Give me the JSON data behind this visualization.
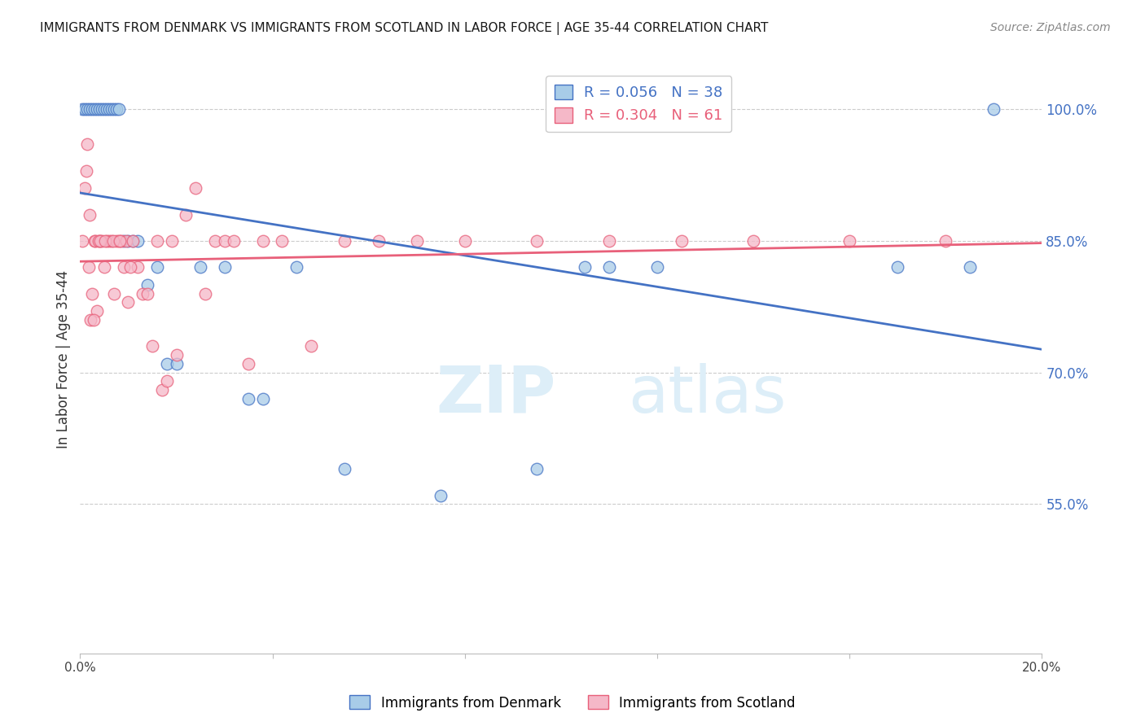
{
  "title": "IMMIGRANTS FROM DENMARK VS IMMIGRANTS FROM SCOTLAND IN LABOR FORCE | AGE 35-44 CORRELATION CHART",
  "source": "Source: ZipAtlas.com",
  "ylabel": "In Labor Force | Age 35-44",
  "xlim": [
    0.0,
    20.0
  ],
  "ylim": [
    38.0,
    105.0
  ],
  "yticks": [
    55.0,
    70.0,
    85.0,
    100.0
  ],
  "ytick_labels": [
    "55.0%",
    "70.0%",
    "85.0%",
    "100.0%"
  ],
  "xticks": [
    0.0,
    4.0,
    8.0,
    12.0,
    16.0,
    20.0
  ],
  "xtick_labels": [
    "0.0%",
    "",
    "",
    "",
    "",
    "20.0%"
  ],
  "denmark_R": 0.056,
  "denmark_N": 38,
  "scotland_R": 0.304,
  "scotland_N": 61,
  "legend_label_denmark": "Immigrants from Denmark",
  "legend_label_scotland": "Immigrants from Scotland",
  "color_denmark": "#a8cce8",
  "color_scotland": "#f5b8c8",
  "color_line_denmark": "#4472c4",
  "color_line_scotland": "#e8607a",
  "color_axis_right": "#4472c4",
  "watermark_color": "#ddeef8",
  "denmark_x": [
    0.05,
    0.1,
    0.15,
    0.2,
    0.25,
    0.3,
    0.35,
    0.4,
    0.45,
    0.5,
    0.55,
    0.6,
    0.65,
    0.7,
    0.75,
    0.8,
    0.9,
    1.0,
    1.1,
    1.2,
    1.4,
    1.6,
    1.8,
    2.0,
    2.5,
    3.0,
    3.5,
    3.8,
    4.5,
    5.5,
    7.5,
    9.5,
    10.5,
    11.0,
    12.0,
    17.0,
    18.5,
    19.0
  ],
  "denmark_y": [
    100.0,
    100.0,
    100.0,
    100.0,
    100.0,
    100.0,
    100.0,
    100.0,
    100.0,
    100.0,
    100.0,
    100.0,
    100.0,
    100.0,
    100.0,
    100.0,
    85.0,
    85.0,
    85.0,
    85.0,
    80.0,
    82.0,
    71.0,
    71.0,
    82.0,
    82.0,
    67.0,
    67.0,
    82.0,
    59.0,
    56.0,
    59.0,
    82.0,
    82.0,
    82.0,
    82.0,
    82.0,
    100.0
  ],
  "scotland_x": [
    0.05,
    0.1,
    0.15,
    0.2,
    0.25,
    0.3,
    0.35,
    0.4,
    0.45,
    0.5,
    0.55,
    0.6,
    0.65,
    0.7,
    0.75,
    0.8,
    0.85,
    0.9,
    0.95,
    1.0,
    1.1,
    1.2,
    1.3,
    1.4,
    1.5,
    1.6,
    1.7,
    1.8,
    1.9,
    2.0,
    2.2,
    2.4,
    2.6,
    2.8,
    3.0,
    3.2,
    3.5,
    3.8,
    4.2,
    4.8,
    5.5,
    6.2,
    7.0,
    8.0,
    9.5,
    11.0,
    12.5,
    14.0,
    16.0,
    18.0,
    0.12,
    0.18,
    0.22,
    0.28,
    0.32,
    0.38,
    0.42,
    0.52,
    0.68,
    0.82,
    1.05
  ],
  "scotland_y": [
    85.0,
    91.0,
    96.0,
    88.0,
    79.0,
    85.0,
    77.0,
    85.0,
    85.0,
    82.0,
    85.0,
    85.0,
    85.0,
    79.0,
    85.0,
    85.0,
    85.0,
    82.0,
    85.0,
    78.0,
    85.0,
    82.0,
    79.0,
    79.0,
    73.0,
    85.0,
    68.0,
    69.0,
    85.0,
    72.0,
    88.0,
    91.0,
    79.0,
    85.0,
    85.0,
    85.0,
    71.0,
    85.0,
    85.0,
    73.0,
    85.0,
    85.0,
    85.0,
    85.0,
    85.0,
    85.0,
    85.0,
    85.0,
    85.0,
    85.0,
    93.0,
    82.0,
    76.0,
    76.0,
    85.0,
    85.0,
    85.0,
    85.0,
    85.0,
    85.0,
    82.0
  ]
}
